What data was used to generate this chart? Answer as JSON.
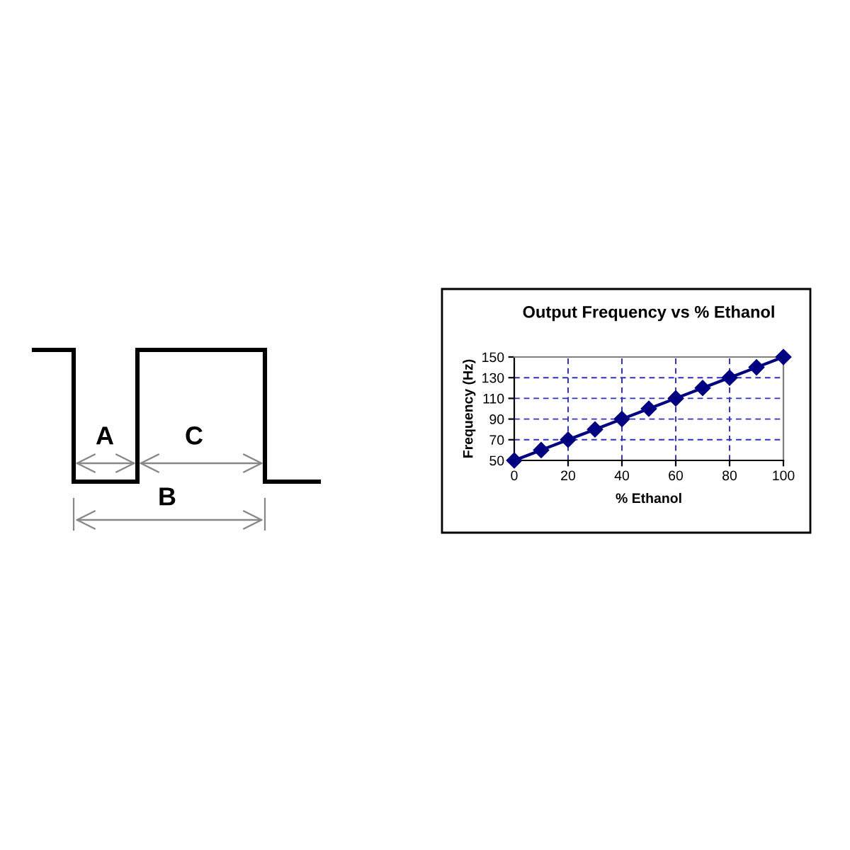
{
  "chart_data": [
    {
      "type": "other",
      "annotations": [
        "A",
        "C",
        "B"
      ]
    },
    {
      "type": "line",
      "title": "Output Frequency vs % Ethanol",
      "xlabel": "% Ethanol",
      "ylabel": "Frequency (Hz)",
      "x": [
        0,
        10,
        20,
        30,
        40,
        50,
        60,
        70,
        80,
        90,
        100
      ],
      "series": [
        {
          "color": "#000080",
          "values": [
            50,
            60,
            70,
            80,
            90,
            100,
            110,
            120,
            130,
            140,
            150
          ]
        }
      ],
      "xlim": [
        0,
        100
      ],
      "xticks": [
        0,
        20,
        40,
        60,
        80,
        100
      ],
      "ylim": [
        50,
        150
      ],
      "yticks": [
        50,
        70,
        90,
        110,
        130,
        150
      ],
      "grid": true,
      "marker": "diamond",
      "line_style": "solid"
    }
  ]
}
